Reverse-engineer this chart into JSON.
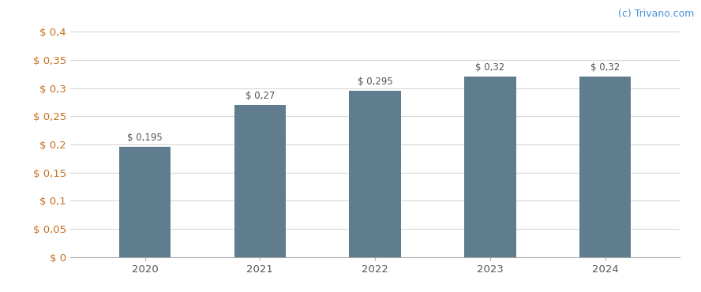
{
  "categories": [
    "2020",
    "2021",
    "2022",
    "2023",
    "2024"
  ],
  "values": [
    0.195,
    0.27,
    0.295,
    0.32,
    0.32
  ],
  "bar_labels": [
    "$ 0,195",
    "$ 0,27",
    "$ 0,295",
    "$ 0,32",
    "$ 0,32"
  ],
  "bar_color": "#607d8f",
  "background_color": "#ffffff",
  "ylim": [
    0,
    0.42
  ],
  "yticks": [
    0,
    0.05,
    0.1,
    0.15,
    0.2,
    0.25,
    0.3,
    0.35,
    0.4
  ],
  "ytick_labels": [
    "$ 0",
    "$ 0,05",
    "$ 0,1",
    "$ 0,15",
    "$ 0,2",
    "$ 0,25",
    "$ 0,3",
    "$ 0,35",
    "$ 0,4"
  ],
  "ytick_color": "#c87020",
  "xtick_color": "#555555",
  "grid_color": "#d8d8d8",
  "watermark": "(c) Trivano.com",
  "watermark_color": "#4a90d9",
  "label_fontsize": 8.5,
  "tick_fontsize": 9.5,
  "bar_width": 0.45,
  "bar_label_color": "#555555",
  "spine_color": "#aaaaaa"
}
